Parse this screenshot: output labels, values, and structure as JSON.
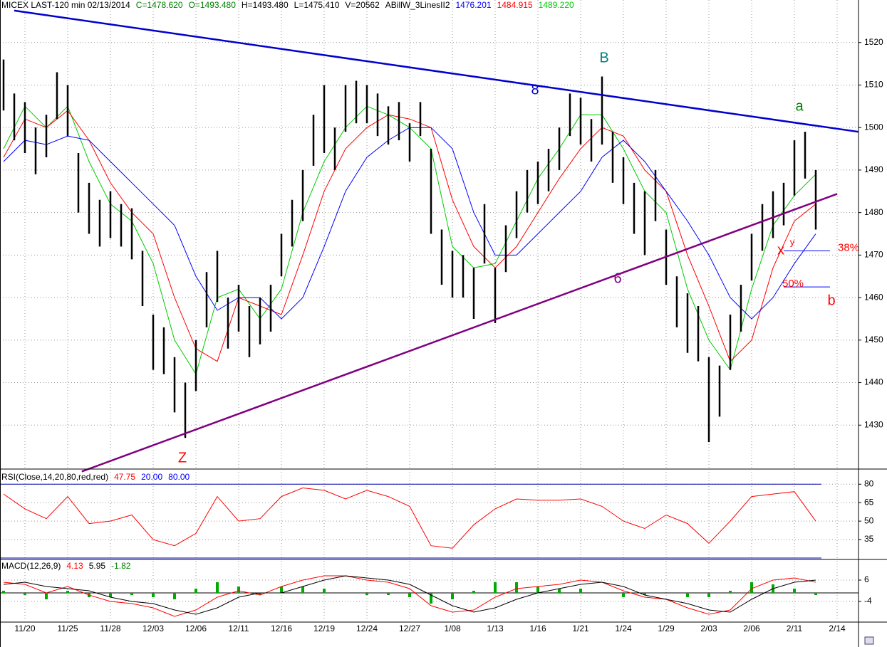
{
  "chart_data": [
    {
      "type": "hl-bar",
      "title": "MICEX LAST-120 min  02/13/2014",
      "title_values": [
        {
          "text": "C=1478.620",
          "color": "#008000"
        },
        {
          "text": "O=1493.480",
          "color": "#008000"
        },
        {
          "text": "H=1493.480",
          "color": "#000000"
        },
        {
          "text": "L=1475.410",
          "color": "#000000"
        },
        {
          "text": "V=20562",
          "color": "#000000"
        },
        {
          "text": "ABillW_3LinesII2",
          "color": "#000000"
        },
        {
          "text": "1476.201",
          "color": "#0000ff"
        },
        {
          "text": "1484.915",
          "color": "#ff0000"
        },
        {
          "text": "1489.220",
          "color": "#00cc00"
        }
      ],
      "color": "#000000",
      "x": [
        -0.5,
        -0.25,
        0,
        0.25,
        0.5,
        0.75,
        1,
        1.25,
        1.5,
        1.75,
        2,
        2.25,
        2.5,
        2.75,
        3,
        3.25,
        3.5,
        3.75,
        4,
        4.25,
        4.5,
        4.75,
        5,
        5.25,
        5.5,
        5.75,
        6,
        6.25,
        6.5,
        6.75,
        7,
        7.25,
        7.5,
        7.75,
        8,
        8.25,
        8.5,
        8.75,
        9,
        9.25,
        9.5,
        9.75,
        10,
        10.25,
        10.5,
        10.75,
        11,
        11.25,
        11.5,
        11.75,
        12,
        12.25,
        12.5,
        12.75,
        13,
        13.25,
        13.5,
        13.75,
        14,
        14.25,
        14.5,
        14.75,
        15,
        15.25,
        15.5,
        15.75,
        16,
        16.25,
        16.5,
        16.75,
        17,
        17.25,
        17.5,
        17.75,
        18,
        18.25,
        18.5
      ],
      "high": [
        1516,
        1508,
        1506,
        1500,
        1503,
        1513,
        1510,
        1494,
        1487,
        1483,
        1485,
        1482,
        1481,
        1471,
        1456,
        1453,
        1446,
        1440,
        1450,
        1466,
        1471,
        1460,
        1463,
        1458,
        1460,
        1463,
        1475,
        1483,
        1490,
        1503,
        1510,
        1500,
        1510,
        1511,
        1510,
        1508,
        1505,
        1506,
        1501,
        1506,
        1495,
        1476,
        1471,
        1470,
        1467,
        1482,
        1467,
        1477,
        1485,
        1490,
        1492,
        1495,
        1500,
        1508,
        1507,
        1502,
        1512,
        1499,
        1493,
        1487,
        1485,
        1490,
        1476,
        1465,
        1461,
        1458,
        1446,
        1444,
        1456,
        1463,
        1475,
        1482,
        1485,
        1487,
        1497,
        1499,
        1490
      ],
      "low": [
        1504,
        1497,
        1494,
        1489,
        1493,
        1502,
        1498,
        1480,
        1475,
        1472,
        1474,
        1472,
        1469,
        1458,
        1443,
        1442,
        1433,
        1427,
        1438,
        1453,
        1459,
        1448,
        1452,
        1446,
        1449,
        1452,
        1465,
        1472,
        1478,
        1491,
        1494,
        1490,
        1499,
        1501,
        1501,
        1498,
        1496,
        1497,
        1492,
        1498,
        1475,
        1463,
        1460,
        1460,
        1455,
        1468,
        1454,
        1466,
        1474,
        1480,
        1482,
        1485,
        1490,
        1498,
        1496,
        1492,
        1496,
        1487,
        1482,
        1475,
        1470,
        1478,
        1463,
        1453,
        1447,
        1445,
        1426,
        1432,
        1443,
        1452,
        1464,
        1471,
        1474,
        1477,
        1484,
        1488,
        1476
      ],
      "overlays": {
        "x": [
          -0.5,
          0,
          0.5,
          1,
          1.5,
          2,
          2.5,
          3,
          3.5,
          4,
          4.5,
          5,
          5.5,
          6,
          6.5,
          7,
          7.5,
          8,
          8.5,
          9,
          9.5,
          10,
          10.5,
          11,
          11.5,
          12,
          12.5,
          13,
          13.5,
          14,
          14.5,
          15,
          15.5,
          16,
          16.5,
          17,
          17.5,
          18,
          18.5
        ],
        "series": [
          {
            "color": "#00cc00",
            "values": [
              1495,
              1505,
              1500,
              1505,
              1492,
              1482,
              1478,
              1468,
              1450,
              1442,
              1460,
              1462,
              1455,
              1462,
              1480,
              1492,
              1500,
              1505,
              1503,
              1500,
              1495,
              1472,
              1467,
              1468,
              1478,
              1488,
              1495,
              1503,
              1503,
              1495,
              1485,
              1480,
              1462,
              1450,
              1443,
              1462,
              1477,
              1484,
              1489
            ]
          },
          {
            "color": "#ff0000",
            "values": [
              1493,
              1502,
              1500,
              1504,
              1497,
              1487,
              1480,
              1475,
              1460,
              1448,
              1445,
              1460,
              1458,
              1456,
              1470,
              1485,
              1495,
              1500,
              1503,
              1502,
              1500,
              1483,
              1472,
              1467,
              1472,
              1480,
              1488,
              1495,
              1500,
              1498,
              1490,
              1485,
              1470,
              1458,
              1445,
              1450,
              1467,
              1478,
              1482
            ]
          },
          {
            "color": "#0000ff",
            "values": [
              1492,
              1497,
              1496,
              1498,
              1497,
              1492,
              1487,
              1482,
              1477,
              1465,
              1457,
              1460,
              1460,
              1455,
              1460,
              1472,
              1485,
              1493,
              1497,
              1500,
              1500,
              1495,
              1480,
              1470,
              1470,
              1475,
              1480,
              1485,
              1493,
              1497,
              1492,
              1485,
              1478,
              1470,
              1460,
              1455,
              1460,
              1468,
              1475
            ]
          }
        ]
      },
      "trendlines": [
        {
          "color": "#0000cc",
          "x": [
            -0.25,
            19.5
          ],
          "values": [
            1527.5,
            1499
          ]
        },
        {
          "color": "#800080",
          "x": [
            1.33,
            19
          ],
          "values": [
            1419.1,
            1484.4
          ]
        }
      ],
      "levels": [
        {
          "label": "38%",
          "value": 1471
        },
        {
          "label": "50%",
          "value": 1462.5
        }
      ],
      "annotations": [
        {
          "text": "B",
          "color": "#008080"
        },
        {
          "text": "a",
          "color": "#008000"
        },
        {
          "text": "Z",
          "color": "#ff0000"
        },
        {
          "text": "8",
          "color": "#0000cc"
        },
        {
          "text": "6",
          "color": "#800080"
        },
        {
          "text": "x",
          "color": "#ff0000"
        },
        {
          "text": "y",
          "color": "#ff0000"
        },
        {
          "text": "b",
          "color": "#ff0000"
        }
      ],
      "ylim": [
        1420,
        1530
      ],
      "yticks": [
        1430,
        1440,
        1450,
        1460,
        1470,
        1480,
        1490,
        1500,
        1510,
        1520
      ],
      "grid": true
    },
    {
      "type": "line",
      "title": "RSI(Close,14,20,80,red,red)",
      "title_values": [
        {
          "text": "47.75",
          "color": "#ff0000"
        },
        {
          "text": "20.00",
          "color": "#0000ff"
        },
        {
          "text": "80.00",
          "color": "#0000ff"
        }
      ],
      "x": [
        -0.5,
        0,
        0.5,
        1,
        1.5,
        2,
        2.5,
        3,
        3.5,
        4,
        4.5,
        5,
        5.5,
        6,
        6.5,
        7,
        7.5,
        8,
        8.5,
        9,
        9.5,
        10,
        10.5,
        11,
        11.5,
        12,
        12.5,
        13,
        13.5,
        14,
        14.5,
        15,
        15.5,
        16,
        16.5,
        17,
        17.5,
        18,
        18.5
      ],
      "series": [
        {
          "color": "#ff0000",
          "values": [
            72,
            60,
            52,
            70,
            48,
            50,
            55,
            35,
            30,
            40,
            70,
            50,
            52,
            70,
            77,
            75,
            68,
            75,
            70,
            62,
            30,
            28,
            47,
            60,
            68,
            67,
            67,
            68,
            62,
            50,
            44,
            55,
            48,
            32,
            50,
            70,
            72,
            74,
            50
          ]
        }
      ],
      "ref_lines": [
        20,
        80
      ],
      "ref_color": "#0000aa",
      "ylim": [
        20,
        90
      ],
      "yticks": [
        35,
        50,
        65,
        80
      ],
      "grid": true
    },
    {
      "type": "macd",
      "title": "MACD(12,26,9)",
      "title_values": [
        {
          "text": "4.13",
          "color": "#ff0000"
        },
        {
          "text": "5.95",
          "color": "#000000"
        },
        {
          "text": "-1.82",
          "color": "#008000"
        }
      ],
      "x": [
        -0.5,
        0,
        0.5,
        1,
        1.5,
        2,
        2.5,
        3,
        3.5,
        4,
        4.5,
        5,
        5.5,
        6,
        6.5,
        7,
        7.5,
        8,
        8.5,
        9,
        9.5,
        10,
        10.5,
        11,
        11.5,
        12,
        12.5,
        13,
        13.5,
        14,
        14.5,
        15,
        15.5,
        16,
        16.5,
        17,
        17.5,
        18,
        18.5
      ],
      "series": [
        {
          "color": "#ff0000",
          "values": [
            5,
            4,
            0,
            3,
            -1,
            -4,
            -5,
            -7,
            -11,
            -8,
            -2,
            1,
            -1,
            3,
            6,
            8,
            8,
            6,
            5,
            2,
            -6,
            -9,
            -8,
            -2,
            2,
            3,
            4,
            6,
            5,
            1,
            -2,
            -3,
            -7,
            -10,
            -8,
            2,
            6,
            7,
            5
          ]
        },
        {
          "color": "#000000",
          "values": [
            4,
            5,
            3,
            2,
            1,
            -2,
            -4,
            -5,
            -8,
            -10,
            -7,
            -2,
            0,
            0,
            3,
            6,
            8,
            7,
            6,
            4,
            -1,
            -6,
            -9,
            -7,
            -3,
            0,
            2,
            4,
            5,
            3,
            -1,
            -3,
            -5,
            -8,
            -9,
            -3,
            2,
            5,
            6
          ]
        }
      ],
      "histogram": {
        "color": "#00aa00",
        "values": [
          1,
          -1,
          -3,
          1,
          -2,
          -2,
          -1,
          -2,
          -3,
          2,
          5,
          3,
          -1,
          3,
          3,
          2,
          0,
          -1,
          -1,
          -2,
          -5,
          -3,
          1,
          5,
          5,
          3,
          2,
          2,
          0,
          -2,
          -1,
          0,
          -2,
          -2,
          1,
          5,
          4,
          2,
          -1
        ]
      },
      "baseline": 0,
      "ylim": [
        -13,
        15
      ],
      "yticks": [
        6,
        -4
      ],
      "grid": true,
      "xlim": [
        -0.5833,
        19.5
      ],
      "xticks": [
        {
          "value": 0,
          "label": "11/20"
        },
        {
          "value": 1,
          "label": "11/25"
        },
        {
          "value": 2,
          "label": "11/28"
        },
        {
          "value": 3,
          "label": "12/03"
        },
        {
          "value": 4,
          "label": "12/06"
        },
        {
          "value": 5,
          "label": "12/11"
        },
        {
          "value": 6,
          "label": "12/16"
        },
        {
          "value": 7,
          "label": "12/19"
        },
        {
          "value": 8,
          "label": "12/24"
        },
        {
          "value": 9,
          "label": "12/27"
        },
        {
          "value": 10,
          "label": "1/08"
        },
        {
          "value": 11,
          "label": "1/13"
        },
        {
          "value": 12,
          "label": "1/16"
        },
        {
          "value": 13,
          "label": "1/21"
        },
        {
          "value": 14,
          "label": "1/24"
        },
        {
          "value": 15,
          "label": "1/29"
        },
        {
          "value": 16,
          "label": "2/03"
        },
        {
          "value": 17,
          "label": "2/06"
        },
        {
          "value": 18,
          "label": "2/11"
        },
        {
          "value": 19,
          "label": "2/14"
        }
      ]
    }
  ]
}
